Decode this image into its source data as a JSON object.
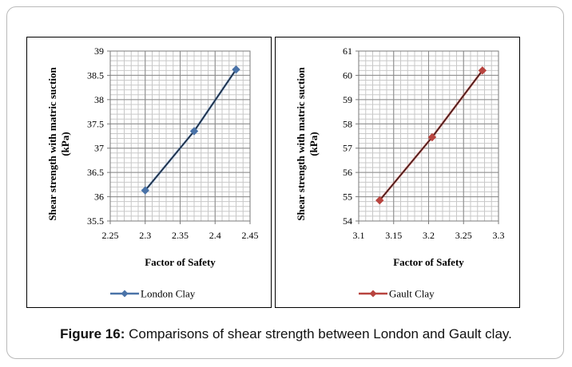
{
  "caption": {
    "label": "Figure 16:",
    "text": "Comparisons of shear strength between London and Gault clay."
  },
  "chart_data": [
    {
      "type": "line",
      "xlabel": "Factor of Safety",
      "ylabel": "Shear strength with matric suction (kPa)",
      "xlim": [
        2.25,
        2.45
      ],
      "ylim": [
        35.5,
        39
      ],
      "xticks": [
        "2.25",
        "2.3",
        "2.35",
        "2.4",
        "2.45"
      ],
      "yticks": [
        "35.5",
        "36",
        "36.5",
        "37",
        "37.5",
        "38",
        "38.5",
        "39"
      ],
      "grid": true,
      "legend_position": "bottom-left",
      "series": [
        {
          "name": "London Clay",
          "color": "#4a73a8",
          "marker": "diamond",
          "x": [
            2.3,
            2.37,
            2.43
          ],
          "y": [
            36.13,
            37.35,
            38.62
          ]
        }
      ]
    },
    {
      "type": "line",
      "xlabel": "Factor of Safety",
      "ylabel": "Shear strength with matric suction (kPa)",
      "xlim": [
        3.1,
        3.3
      ],
      "ylim": [
        54,
        61
      ],
      "xticks": [
        "3.1",
        "3.15",
        "3.2",
        "3.25",
        "3.3"
      ],
      "yticks": [
        "54",
        "55",
        "56",
        "57",
        "58",
        "59",
        "60",
        "61"
      ],
      "grid": true,
      "legend_position": "bottom-left",
      "series": [
        {
          "name": "Gault Clay",
          "color": "#b8443f",
          "marker": "diamond",
          "x": [
            3.13,
            3.205,
            3.277
          ],
          "y": [
            54.85,
            57.45,
            60.2
          ]
        }
      ]
    }
  ]
}
